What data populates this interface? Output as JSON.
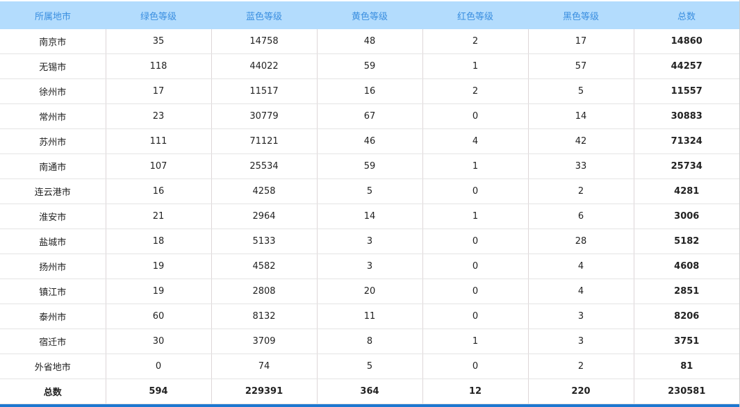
{
  "headers": [
    "所属地市",
    "绿色等级",
    "蓝色等级",
    "黄色等级",
    "红色等级",
    "黑色等级",
    "总数"
  ],
  "rows": [
    [
      "南京市",
      "35",
      "14758",
      "48",
      "2",
      "17",
      "14860"
    ],
    [
      "无锡市",
      "118",
      "44022",
      "59",
      "1",
      "57",
      "44257"
    ],
    [
      "徐州市",
      "17",
      "11517",
      "16",
      "2",
      "5",
      "11557"
    ],
    [
      "常州市",
      "23",
      "30779",
      "67",
      "0",
      "14",
      "30883"
    ],
    [
      "苏州市",
      "111",
      "71121",
      "46",
      "4",
      "42",
      "71324"
    ],
    [
      "南通市",
      "107",
      "25534",
      "59",
      "1",
      "33",
      "25734"
    ],
    [
      "连云港市",
      "16",
      "4258",
      "5",
      "0",
      "2",
      "4281"
    ],
    [
      "淮安市",
      "21",
      "2964",
      "14",
      "1",
      "6",
      "3006"
    ],
    [
      "盐城市",
      "18",
      "5133",
      "3",
      "0",
      "28",
      "5182"
    ],
    [
      "扬州市",
      "19",
      "4582",
      "3",
      "0",
      "4",
      "4608"
    ],
    [
      "镇江市",
      "19",
      "2808",
      "20",
      "0",
      "4",
      "2851"
    ],
    [
      "泰州市",
      "60",
      "8132",
      "11",
      "0",
      "3",
      "8206"
    ],
    [
      "宿迁市",
      "30",
      "3709",
      "8",
      "1",
      "3",
      "3751"
    ],
    [
      "外省地市",
      "0",
      "74",
      "5",
      "0",
      "2",
      "81"
    ]
  ],
  "total_row": [
    "总数",
    "594",
    "229391",
    "364",
    "12",
    "220",
    "230581"
  ],
  "colors": {
    "header_bg": "#b3dcfd",
    "header_text": "#3b8fe0",
    "bottom_bar": "#1d77d0"
  }
}
